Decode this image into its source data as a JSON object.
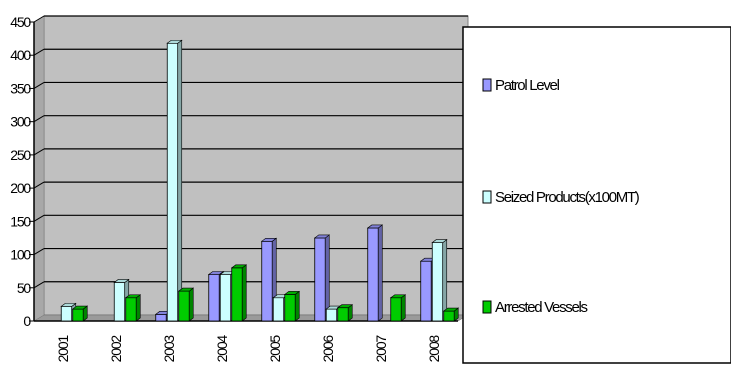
{
  "chart_data": {
    "type": "bar",
    "title": "",
    "xlabel": "",
    "ylabel": "",
    "ylim": [
      0,
      450
    ],
    "yticks": [
      "0",
      "50",
      "100",
      "150",
      "200",
      "250",
      "300",
      "350",
      "400",
      "450"
    ],
    "categories": [
      "2001",
      "2002",
      "2003",
      "2004",
      "2005",
      "2006",
      "2007",
      "2008"
    ],
    "grid": true,
    "legend_position": "right",
    "series": [
      {
        "name": "Patrol Level",
        "color": "#9999ff",
        "values": [
          0,
          0,
          10,
          70,
          120,
          125,
          140,
          90
        ]
      },
      {
        "name": "Seized Products(x100MT)",
        "color": "#ccffff",
        "values": [
          22,
          58,
          418,
          70,
          35,
          18,
          0,
          118
        ]
      },
      {
        "name": "Arrested Vessels",
        "color": "#00cc00",
        "values": [
          18,
          35,
          45,
          80,
          40,
          20,
          35,
          15
        ]
      }
    ]
  }
}
